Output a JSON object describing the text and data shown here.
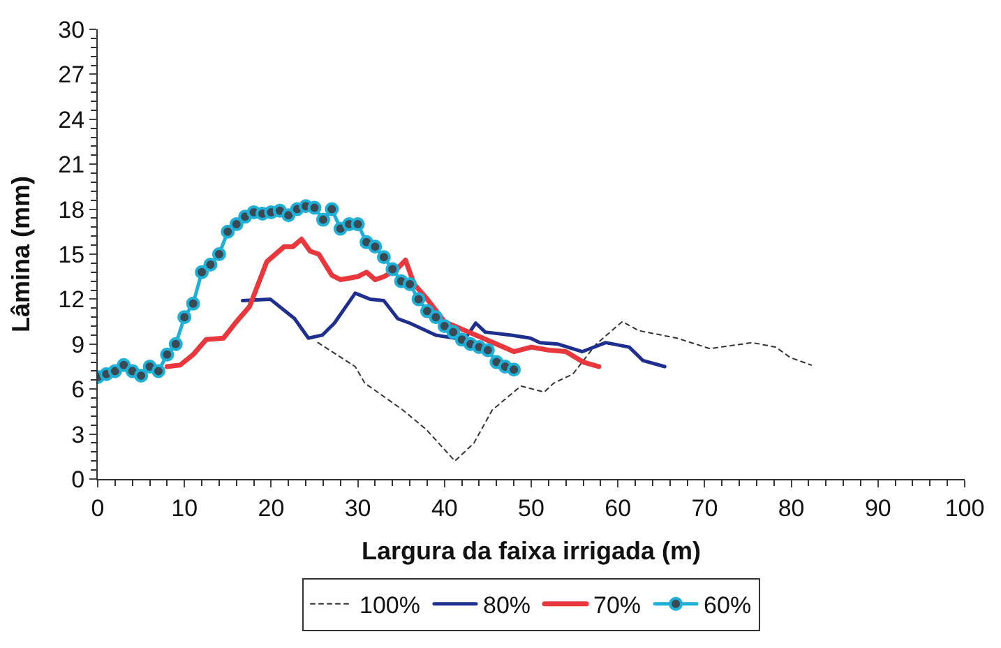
{
  "chart_data": {
    "type": "line",
    "xlabel": "Largura da faixa irrigada (m)",
    "ylabel": "Lâmina (mm)",
    "xlim": [
      0,
      100
    ],
    "xticks": [
      0,
      10,
      20,
      30,
      40,
      50,
      60,
      70,
      80,
      90,
      100
    ],
    "ylim": [
      0,
      30
    ],
    "yticks": [
      0,
      3,
      6,
      9,
      12,
      15,
      18,
      21,
      24,
      27,
      30
    ],
    "legend": "bottom",
    "series": [
      {
        "name": "100%",
        "color": "#333333",
        "line_style": "dotted",
        "marker": "none",
        "x": [
          25.4,
          29.7,
          30.8,
          35.2,
          37.9,
          41.2,
          43.4,
          45.5,
          48.8,
          51.5,
          52.6,
          54.8,
          57.5,
          60.5,
          62.4,
          66.8,
          70.6,
          75.5,
          78.2,
          79.9,
          82.3
        ],
        "values": [
          9.1,
          7.5,
          6.4,
          4.6,
          3.3,
          1.2,
          2.4,
          4.6,
          6.2,
          5.8,
          6.4,
          7.0,
          9.0,
          10.5,
          9.9,
          9.4,
          8.7,
          9.1,
          8.8,
          8.1,
          7.6
        ]
      },
      {
        "name": "80%",
        "color": "#1f2f8f",
        "line_style": "solid",
        "marker": "none",
        "x": [
          16.7,
          19.9,
          22.7,
          24.3,
          25.9,
          27.3,
          29.7,
          31.4,
          33,
          34.6,
          36,
          39,
          42.3,
          43.6,
          44.7,
          47.7,
          49.9,
          51,
          53.1,
          55.9,
          58.6,
          61.3,
          62.9,
          65.4
        ],
        "values": [
          11.9,
          12.0,
          10.7,
          9.4,
          9.6,
          10.4,
          12.4,
          12.0,
          11.9,
          10.7,
          10.4,
          9.6,
          9.3,
          10.4,
          9.8,
          9.6,
          9.4,
          9.1,
          9.0,
          8.5,
          9.1,
          8.8,
          7.9,
          7.5
        ]
      },
      {
        "name": "70%",
        "color": "#e8383d",
        "line_style": "solid",
        "marker": "none",
        "x": [
          8,
          9.5,
          11,
          12.5,
          14.5,
          16,
          17.5,
          18.5,
          19.5,
          20.5,
          21.5,
          22.5,
          23.5,
          24.5,
          25.5,
          27,
          28,
          30,
          31,
          32,
          33,
          34.5,
          35.5,
          36.5,
          38,
          40,
          42,
          44,
          46,
          48,
          50,
          52,
          54,
          56,
          57.8
        ],
        "values": [
          7.5,
          7.6,
          8.3,
          9.3,
          9.4,
          10.5,
          11.5,
          13,
          14.5,
          15,
          15.5,
          15.5,
          16,
          15.2,
          15,
          13.6,
          13.3,
          13.5,
          13.8,
          13.3,
          13.5,
          14,
          14.6,
          13,
          12,
          10.5,
          10,
          9.5,
          9,
          8.5,
          8.8,
          8.6,
          8.5,
          7.8,
          7.5
        ]
      },
      {
        "name": "60%",
        "color": "#1fb0d8",
        "line_style": "solid",
        "marker": "circle",
        "x": [
          0,
          1,
          2,
          3,
          4,
          5,
          6,
          7,
          8,
          9,
          10,
          11,
          12,
          13,
          14,
          15,
          16,
          17,
          18,
          19,
          20,
          21,
          22,
          23,
          24,
          25,
          26,
          27,
          28,
          29,
          30,
          31,
          32,
          33,
          34,
          35,
          36,
          37,
          38,
          39,
          40,
          41,
          42,
          43,
          44,
          45,
          46,
          47,
          48
        ],
        "values": [
          6.8,
          7.0,
          7.2,
          7.6,
          7.2,
          6.9,
          7.5,
          7.2,
          8.3,
          9.0,
          10.8,
          11.7,
          13.8,
          14.3,
          15.0,
          16.5,
          17.0,
          17.5,
          17.8,
          17.7,
          17.8,
          17.9,
          17.6,
          18.0,
          18.2,
          18.1,
          17.3,
          18.0,
          16.7,
          17.0,
          17.0,
          15.8,
          15.5,
          14.8,
          14.0,
          13.2,
          13.0,
          12.0,
          11.2,
          10.8,
          10.2,
          9.8,
          9.3,
          9.0,
          8.8,
          8.6,
          7.8,
          7.5,
          7.3
        ]
      }
    ]
  }
}
